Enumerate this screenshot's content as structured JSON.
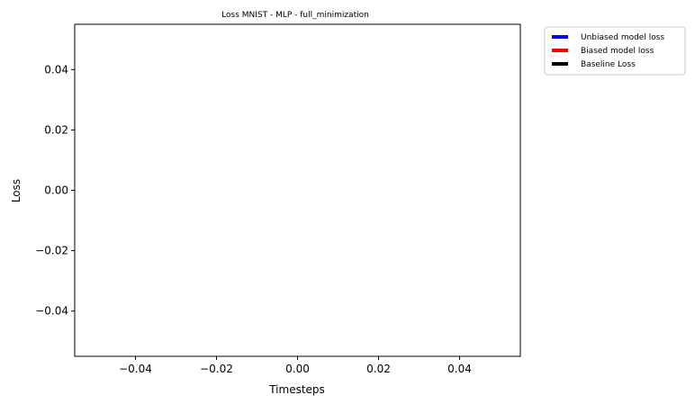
{
  "chart_data": {
    "type": "line",
    "title": "Loss MNIST - MLP - full_minimization",
    "xlabel": "Timesteps",
    "ylabel": "Loss",
    "xlim": [
      -0.055,
      0.055
    ],
    "ylim": [
      -0.055,
      0.055
    ],
    "xticks": [
      -0.04,
      -0.02,
      0.0,
      0.02,
      0.04
    ],
    "xtick_labels": [
      "−0.04",
      "−0.02",
      "0.00",
      "0.02",
      "0.04"
    ],
    "yticks": [
      -0.04,
      -0.02,
      0.0,
      0.02,
      0.04
    ],
    "ytick_labels": [
      "−0.04",
      "−0.02",
      "0.00",
      "0.02",
      "0.04"
    ],
    "grid": false,
    "legend_position": "outside-top-right",
    "series": [
      {
        "name": "Unbiased model loss",
        "color": "#0000ff",
        "x": [],
        "y": []
      },
      {
        "name": "Biased model loss",
        "color": "#ff0000",
        "x": [],
        "y": []
      },
      {
        "name": "Baseline Loss",
        "color": "#000000",
        "x": [],
        "y": []
      }
    ]
  }
}
